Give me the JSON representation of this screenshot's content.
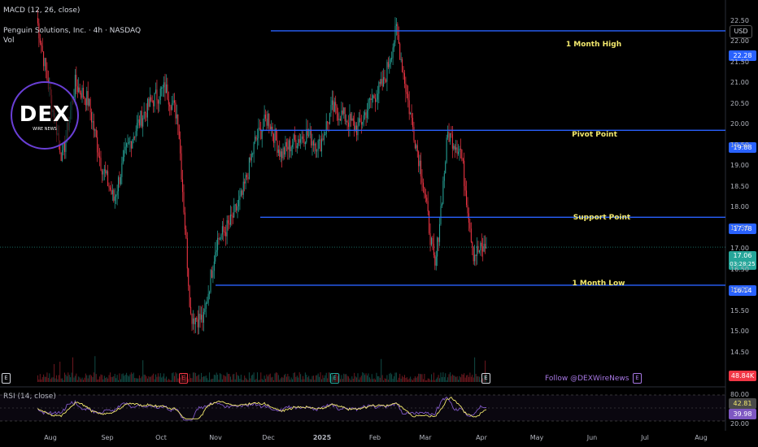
{
  "header": {
    "macd_label": "MACD (12, 26, close)",
    "symbol_line": "Penguin Solutions, Inc. · 4h · NASDAQ",
    "vol_label": "Vol",
    "currency_button": "USD"
  },
  "logo": {
    "text": "DEX",
    "subtext": "WIRE NEWS"
  },
  "levels": [
    {
      "name": "1 Month High",
      "value": 22.28,
      "label": "22.28"
    },
    {
      "name": "Pivot Point",
      "value": 19.88,
      "label": "19.88"
    },
    {
      "name": "Support Point",
      "value": 17.78,
      "label": "17.78"
    },
    {
      "name": "1 Month Low",
      "value": 16.14,
      "label": "16.14"
    }
  ],
  "current_price": {
    "value": 17.06,
    "label": "17.06",
    "countdown": "03:28:25"
  },
  "volume_tag": "48.84K",
  "rsi": {
    "label": "RSI (14, close)",
    "upper": "80.00",
    "value_a": "42.81",
    "value_b": "39.98",
    "lower": "20.00"
  },
  "follow_text": "Follow @DEXWireNews",
  "earnings_marker": "E",
  "colors": {
    "up": "#26a69a",
    "down": "#f23645",
    "level": "#2962ff",
    "rsi": "#7e57c2",
    "rsi_ma": "#f2e86d"
  },
  "chart_data": {
    "type": "candlestick",
    "title": "Penguin Solutions, Inc. · 4h · NASDAQ",
    "ylim": [
      14.0,
      22.75
    ],
    "price_ticks": [
      "22.50",
      "22.00",
      "21.50",
      "21.00",
      "20.50",
      "20.00",
      "19.50",
      "19.00",
      "18.50",
      "18.00",
      "17.50",
      "17.00",
      "16.50",
      "16.00",
      "15.50",
      "15.00",
      "14.50"
    ],
    "x_ticks": [
      "Aug",
      "Sep",
      "Oct",
      "Nov",
      "Dec",
      "2025",
      "Feb",
      "Mar",
      "Apr",
      "May",
      "Jun",
      "Jul",
      "Aug"
    ],
    "series": [
      {
        "name": "close",
        "x": [
          "Jul 29",
          "Aug 5",
          "Aug 12",
          "Aug 19",
          "Aug 26",
          "Sep 2",
          "Sep 9",
          "Sep 16",
          "Sep 23",
          "Sep 30",
          "Oct 7",
          "Oct 14",
          "Oct 21",
          "Oct 28",
          "Nov 4",
          "Nov 11",
          "Nov 18",
          "Nov 25",
          "Dec 2",
          "Dec 9",
          "Dec 16",
          "Dec 23",
          "Dec 30",
          "Jan 6",
          "Jan 13",
          "Jan 20",
          "Jan 27",
          "Feb 3",
          "Feb 10",
          "Feb 17",
          "Feb 24",
          "Mar 3",
          "Mar 10",
          "Mar 17",
          "Mar 24",
          "Mar 31"
        ],
        "values": [
          22.6,
          20.8,
          19.2,
          21.0,
          20.6,
          19.1,
          18.2,
          19.4,
          20.1,
          20.6,
          20.9,
          20.2,
          15.4,
          15.3,
          17.2,
          17.6,
          18.3,
          19.6,
          20.2,
          19.3,
          19.6,
          19.8,
          19.5,
          20.4,
          20.2,
          19.9,
          20.6,
          21.0,
          22.3,
          20.4,
          18.8,
          16.5,
          19.8,
          19.4,
          16.9,
          17.06
        ]
      }
    ],
    "rsi_ylim": [
      20,
      80
    ]
  }
}
